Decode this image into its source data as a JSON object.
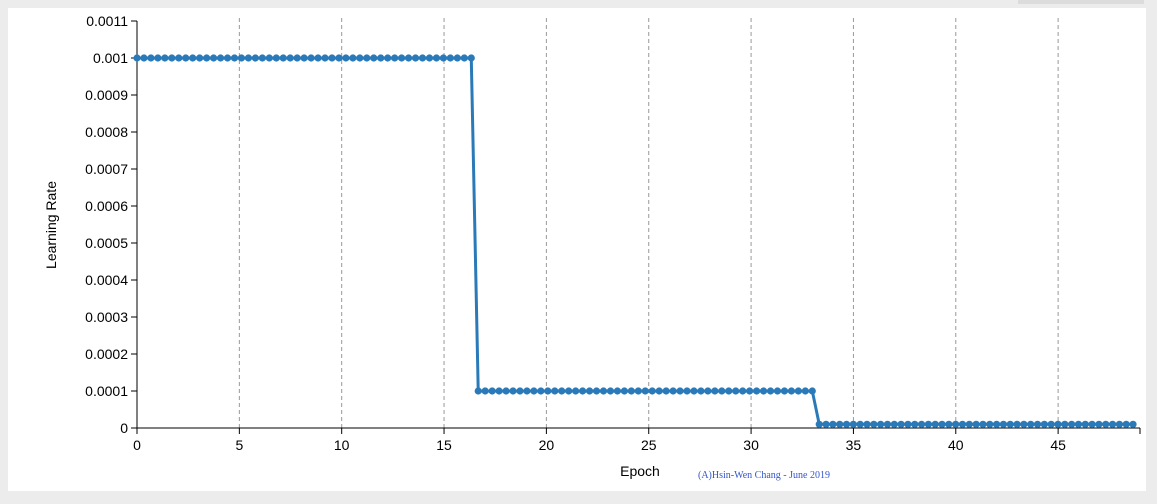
{
  "chart_data": {
    "type": "line",
    "title": "",
    "xlabel": "Epoch",
    "ylabel": "Learning Rate",
    "xlim": [
      0,
      49
    ],
    "ylim": [
      0,
      0.0011
    ],
    "x_ticks": [
      "0",
      "5",
      "10",
      "15",
      "20",
      "25",
      "30",
      "35",
      "40",
      "45"
    ],
    "y_ticks": [
      "0",
      "0.0001",
      "0.0002",
      "0.0003",
      "0.0004",
      "0.0005",
      "0.0006",
      "0.0007",
      "0.0008",
      "0.0009",
      "0.001",
      "0.0011"
    ],
    "grid": "vertical dashed",
    "series": [
      {
        "color": "#2a7ab9",
        "segments": [
          {
            "x_start": 0,
            "x_end": 16.33,
            "y": 0.001,
            "points": 49
          },
          {
            "x_start": 16.67,
            "x_end": 32.99,
            "y": 0.0001,
            "points": 49
          },
          {
            "x_start": 33.33,
            "x_end": 48.66,
            "y": 1e-05,
            "points": 47
          }
        ]
      }
    ]
  },
  "credit": "(A)Hsin-Wen Chang - June 2019",
  "colors": {
    "line": "#2a7ab9",
    "grid": "#999999",
    "credit": "#3355cc"
  }
}
